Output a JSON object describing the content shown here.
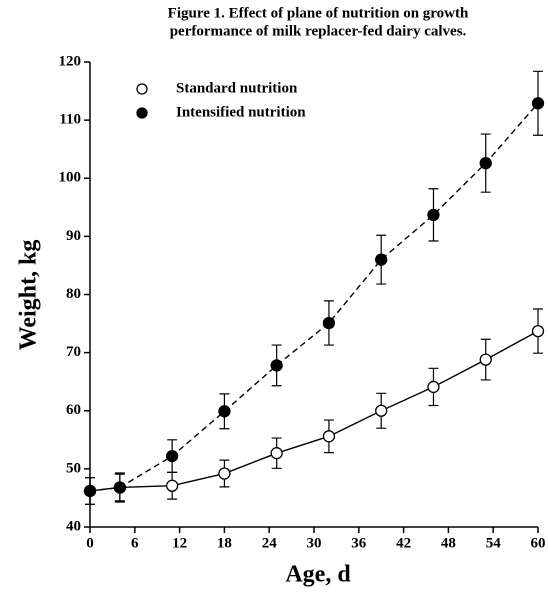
{
  "chart_data": {
    "type": "line",
    "title": [
      "Figure 1. Effect of plane of nutrition on growth",
      "performance of milk replacer-fed dairy calves."
    ],
    "x_label": "Age, d",
    "y_label": "Weight, kg",
    "xlim": [
      0,
      60
    ],
    "xticks": [
      0,
      6,
      12,
      18,
      24,
      30,
      36,
      42,
      48,
      54,
      60
    ],
    "ylim": [
      40,
      120
    ],
    "yticks": [
      40,
      50,
      60,
      70,
      80,
      90,
      100,
      110,
      120
    ],
    "series": [
      {
        "name": "Standard nutrition",
        "color": "#000000",
        "marker": "open",
        "dash": false,
        "x": [
          0,
          4,
          11,
          18,
          25,
          32,
          39,
          46,
          53,
          60
        ],
        "values": [
          46.2,
          46.8,
          47.1,
          49.2,
          52.7,
          55.6,
          60.0,
          64.1,
          68.8,
          73.7
        ],
        "errors": [
          2.3,
          2.3,
          2.3,
          2.3,
          2.6,
          2.8,
          3.0,
          3.2,
          3.5,
          3.8
        ]
      },
      {
        "name": "Intensified nutrition",
        "color": "#000000",
        "marker": "filled",
        "dash": true,
        "x": [
          0,
          4,
          11,
          18,
          25,
          32,
          39,
          46,
          53,
          60
        ],
        "values": [
          46.2,
          46.8,
          52.2,
          59.9,
          67.8,
          75.1,
          86.0,
          93.7,
          102.6,
          112.9
        ],
        "errors": [
          2.3,
          2.5,
          2.8,
          3.0,
          3.5,
          3.8,
          4.2,
          4.5,
          5.0,
          5.5
        ]
      }
    ]
  }
}
